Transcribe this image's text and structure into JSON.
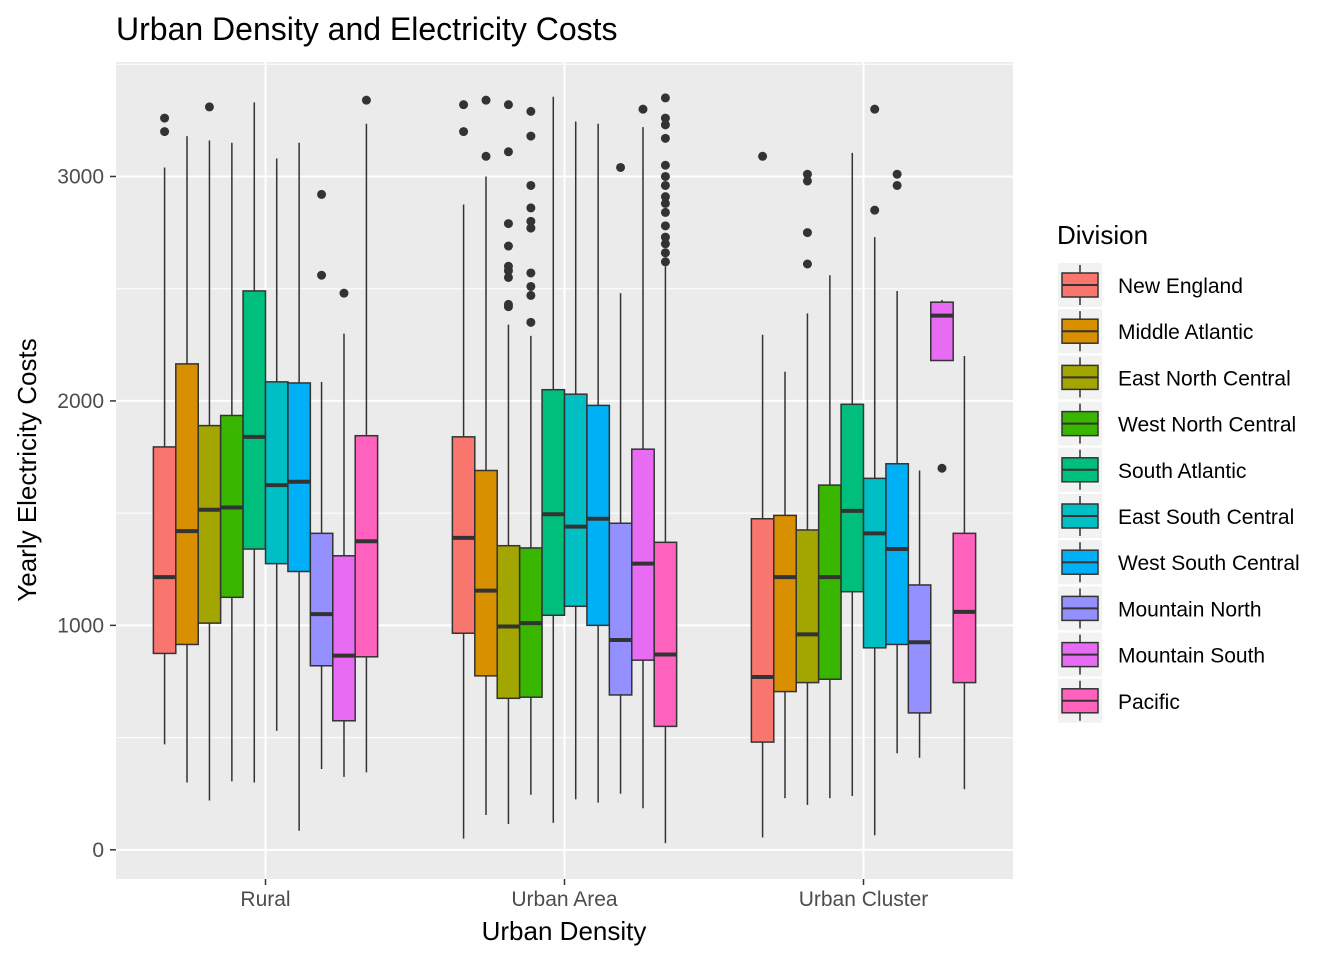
{
  "chart_data": {
    "type": "boxplot",
    "title": "Urban Density and Electricity Costs",
    "xlabel": "Urban Density",
    "ylabel": "Yearly Electricity Costs",
    "ylim": [
      -130,
      3510
    ],
    "y_ticks": [
      0,
      1000,
      2000,
      3000
    ],
    "grid": true,
    "legend": {
      "title": "Division",
      "placement": "right"
    },
    "categories": [
      "Rural",
      "Urban Area",
      "Urban Cluster"
    ],
    "series": [
      {
        "name": "New England",
        "color": "#F8766D",
        "boxes": [
          {
            "category": "Rural",
            "lower": 470,
            "q1": 875,
            "median": 1215,
            "q3": 1795,
            "upper": 3040,
            "outliers": [
              3200,
              3260
            ]
          },
          {
            "category": "Urban Area",
            "lower": 50,
            "q1": 965,
            "median": 1390,
            "q3": 1840,
            "upper": 2875,
            "outliers": [
              3200,
              3320
            ]
          },
          {
            "category": "Urban Cluster",
            "lower": 55,
            "q1": 480,
            "median": 770,
            "q3": 1475,
            "upper": 2295,
            "outliers": [
              3090
            ]
          }
        ]
      },
      {
        "name": "Middle Atlantic",
        "color": "#D89000",
        "boxes": [
          {
            "category": "Rural",
            "lower": 300,
            "q1": 915,
            "median": 1420,
            "q3": 2165,
            "upper": 3180,
            "outliers": []
          },
          {
            "category": "Urban Area",
            "lower": 155,
            "q1": 775,
            "median": 1155,
            "q3": 1690,
            "upper": 3000,
            "outliers": [
              3090,
              3340
            ]
          },
          {
            "category": "Urban Cluster",
            "lower": 230,
            "q1": 705,
            "median": 1215,
            "q3": 1490,
            "upper": 2130,
            "outliers": []
          }
        ]
      },
      {
        "name": "East North Central",
        "color": "#A3A500",
        "boxes": [
          {
            "category": "Rural",
            "lower": 220,
            "q1": 1010,
            "median": 1515,
            "q3": 1890,
            "upper": 3160,
            "outliers": [
              3310
            ]
          },
          {
            "category": "Urban Area",
            "lower": 115,
            "q1": 675,
            "median": 995,
            "q3": 1355,
            "upper": 2340,
            "outliers": [
              2420,
              2430,
              2550,
              2580,
              2600,
              2690,
              2790,
              3110,
              3320
            ]
          },
          {
            "category": "Urban Cluster",
            "lower": 200,
            "q1": 745,
            "median": 960,
            "q3": 1425,
            "upper": 2390,
            "outliers": [
              2610,
              2750,
              2980,
              3010
            ]
          }
        ]
      },
      {
        "name": "West North Central",
        "color": "#39B600",
        "boxes": [
          {
            "category": "Rural",
            "lower": 305,
            "q1": 1125,
            "median": 1525,
            "q3": 1935,
            "upper": 3150,
            "outliers": []
          },
          {
            "category": "Urban Area",
            "lower": 245,
            "q1": 680,
            "median": 1010,
            "q3": 1345,
            "upper": 2290,
            "outliers": [
              2350,
              2470,
              2510,
              2570,
              2770,
              2800,
              2860,
              2960,
              3180,
              3290
            ]
          },
          {
            "category": "Urban Cluster",
            "lower": 230,
            "q1": 760,
            "median": 1215,
            "q3": 1625,
            "upper": 2560,
            "outliers": []
          }
        ]
      },
      {
        "name": "South Atlantic",
        "color": "#00BF7D",
        "boxes": [
          {
            "category": "Rural",
            "lower": 300,
            "q1": 1340,
            "median": 1840,
            "q3": 2490,
            "upper": 3330,
            "outliers": []
          },
          {
            "category": "Urban Area",
            "lower": 120,
            "q1": 1045,
            "median": 1495,
            "q3": 2050,
            "upper": 3355,
            "outliers": []
          },
          {
            "category": "Urban Cluster",
            "lower": 240,
            "q1": 1150,
            "median": 1510,
            "q3": 1985,
            "upper": 3105,
            "outliers": []
          }
        ]
      },
      {
        "name": "East South Central",
        "color": "#00BFC4",
        "boxes": [
          {
            "category": "Rural",
            "lower": 530,
            "q1": 1275,
            "median": 1625,
            "q3": 2085,
            "upper": 3080,
            "outliers": []
          },
          {
            "category": "Urban Area",
            "lower": 225,
            "q1": 1085,
            "median": 1440,
            "q3": 2030,
            "upper": 3245,
            "outliers": []
          },
          {
            "category": "Urban Cluster",
            "lower": 65,
            "q1": 900,
            "median": 1410,
            "q3": 1655,
            "upper": 2730,
            "outliers": [
              2850,
              3300
            ]
          }
        ]
      },
      {
        "name": "West South Central",
        "color": "#00B0F6",
        "boxes": [
          {
            "category": "Rural",
            "lower": 85,
            "q1": 1240,
            "median": 1640,
            "q3": 2080,
            "upper": 3150,
            "outliers": []
          },
          {
            "category": "Urban Area",
            "lower": 210,
            "q1": 1000,
            "median": 1475,
            "q3": 1980,
            "upper": 3235,
            "outliers": []
          },
          {
            "category": "Urban Cluster",
            "lower": 430,
            "q1": 915,
            "median": 1340,
            "q3": 1720,
            "upper": 2490,
            "outliers": [
              2960,
              3010
            ]
          }
        ]
      },
      {
        "name": "Mountain North",
        "color": "#9590FF",
        "boxes": [
          {
            "category": "Rural",
            "lower": 360,
            "q1": 820,
            "median": 1050,
            "q3": 1410,
            "upper": 2085,
            "outliers": [
              2560,
              2920
            ]
          },
          {
            "category": "Urban Area",
            "lower": 250,
            "q1": 690,
            "median": 935,
            "q3": 1455,
            "upper": 2480,
            "outliers": [
              3040
            ]
          },
          {
            "category": "Urban Cluster",
            "lower": 410,
            "q1": 610,
            "median": 925,
            "q3": 1180,
            "upper": 1690,
            "outliers": []
          }
        ]
      },
      {
        "name": "Mountain South",
        "color": "#E76BF3",
        "boxes": [
          {
            "category": "Rural",
            "lower": 325,
            "q1": 575,
            "median": 865,
            "q3": 1310,
            "upper": 2300,
            "outliers": [
              2480
            ]
          },
          {
            "category": "Urban Area",
            "lower": 185,
            "q1": 845,
            "median": 1275,
            "q3": 1785,
            "upper": 3220,
            "outliers": [
              3300
            ]
          },
          {
            "category": "Urban Cluster",
            "lower": 2180,
            "q1": 2180,
            "median": 2380,
            "q3": 2440,
            "upper": 2450,
            "outliers": [
              1700
            ]
          }
        ]
      },
      {
        "name": "Pacific",
        "color": "#FF62BC",
        "boxes": [
          {
            "category": "Rural",
            "lower": 345,
            "q1": 860,
            "median": 1375,
            "q3": 1845,
            "upper": 3235,
            "outliers": [
              3340
            ]
          },
          {
            "category": "Urban Area",
            "lower": 30,
            "q1": 550,
            "median": 870,
            "q3": 1370,
            "upper": 2600,
            "outliers": [
              2620,
              2660,
              2700,
              2730,
              2780,
              2840,
              2880,
              2910,
              2960,
              3000,
              3050,
              3170,
              3230,
              3260,
              3350
            ]
          },
          {
            "category": "Urban Cluster",
            "lower": 270,
            "q1": 745,
            "median": 1060,
            "q3": 1410,
            "upper": 2200,
            "outliers": []
          }
        ]
      }
    ]
  }
}
